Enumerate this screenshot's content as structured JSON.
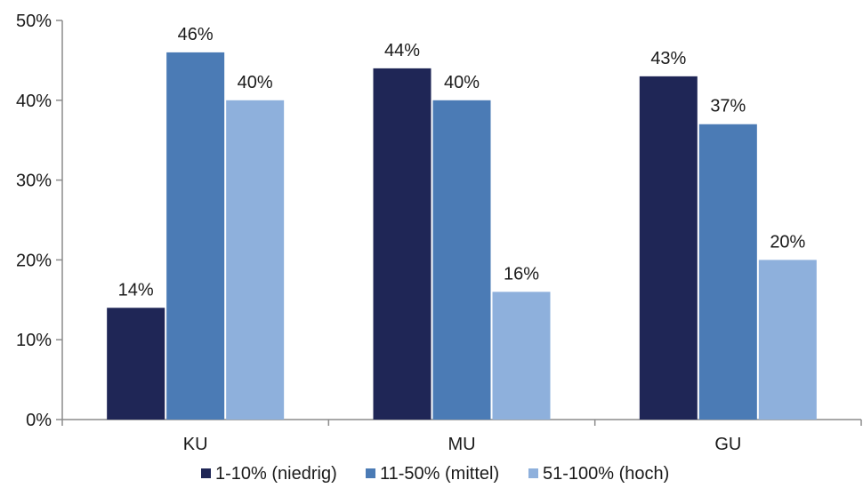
{
  "chart_data": {
    "type": "bar",
    "title": "",
    "xlabel": "",
    "ylabel": "",
    "categories": [
      "KU",
      "MU",
      "GU"
    ],
    "series": [
      {
        "name": "1-10% (niedrig)",
        "color": "#1f2656",
        "values": [
          14,
          44,
          43
        ]
      },
      {
        "name": "11-50% (mittel)",
        "color": "#4b7bb5",
        "values": [
          46,
          40,
          37
        ]
      },
      {
        "name": "51-100% (hoch)",
        "color": "#8eb0dc",
        "values": [
          40,
          16,
          20
        ]
      }
    ],
    "ylim": [
      0,
      50
    ],
    "yticks": [
      0,
      10,
      20,
      30,
      40,
      50
    ],
    "value_format": "{v}%",
    "grid": false,
    "legend_position": "bottom"
  }
}
